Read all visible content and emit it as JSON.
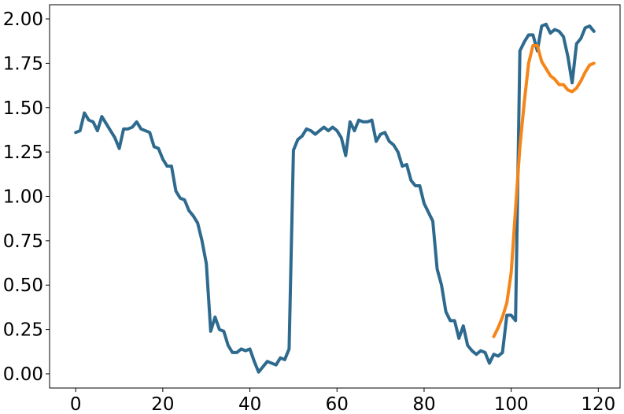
{
  "chart_data": {
    "type": "line",
    "title": "",
    "xlabel": "",
    "ylabel": "",
    "xlim": [
      -6,
      125
    ],
    "ylim": [
      -0.08,
      2.08
    ],
    "xticks": [
      0,
      20,
      40,
      60,
      80,
      100,
      120
    ],
    "xtick_labels": [
      "0",
      "20",
      "40",
      "60",
      "80",
      "100",
      "120"
    ],
    "yticks": [
      0.0,
      0.25,
      0.5,
      0.75,
      1.0,
      1.25,
      1.5,
      1.75,
      2.0
    ],
    "ytick_labels": [
      "0.00",
      "0.25",
      "0.50",
      "0.75",
      "1.00",
      "1.25",
      "1.50",
      "1.75",
      "2.00"
    ],
    "grid": false,
    "legend": "none",
    "series": [
      {
        "color": "#2e6a8e",
        "x": [
          0,
          1,
          2,
          3,
          4,
          5,
          6,
          7,
          8,
          9,
          10,
          11,
          12,
          13,
          14,
          15,
          16,
          17,
          18,
          19,
          20,
          21,
          22,
          23,
          24,
          25,
          26,
          27,
          28,
          29,
          30,
          31,
          32,
          33,
          34,
          35,
          36,
          37,
          38,
          39,
          40,
          41,
          42,
          43,
          44,
          45,
          46,
          47,
          48,
          49,
          50,
          51,
          52,
          53,
          54,
          55,
          56,
          57,
          58,
          59,
          60,
          61,
          62,
          63,
          64,
          65,
          66,
          67,
          68,
          69,
          70,
          71,
          72,
          73,
          74,
          75,
          76,
          77,
          78,
          79,
          80,
          81,
          82,
          83,
          84,
          85,
          86,
          87,
          88,
          89,
          90,
          91,
          92,
          93,
          94,
          95,
          96,
          97,
          98,
          99,
          100,
          101,
          102,
          103,
          104,
          105,
          106,
          107,
          108,
          109,
          110,
          111,
          112,
          113,
          114,
          115,
          116,
          117,
          118,
          119
        ],
        "y": [
          1.36,
          1.37,
          1.47,
          1.43,
          1.42,
          1.37,
          1.45,
          1.41,
          1.37,
          1.33,
          1.27,
          1.38,
          1.38,
          1.39,
          1.42,
          1.38,
          1.37,
          1.36,
          1.28,
          1.27,
          1.21,
          1.17,
          1.17,
          1.03,
          0.99,
          0.98,
          0.92,
          0.89,
          0.85,
          0.75,
          0.62,
          0.24,
          0.32,
          0.25,
          0.24,
          0.16,
          0.12,
          0.12,
          0.14,
          0.13,
          0.14,
          0.07,
          0.01,
          0.04,
          0.07,
          0.06,
          0.05,
          0.09,
          0.08,
          0.14,
          1.26,
          1.32,
          1.34,
          1.38,
          1.37,
          1.35,
          1.37,
          1.39,
          1.37,
          1.39,
          1.37,
          1.33,
          1.23,
          1.42,
          1.37,
          1.43,
          1.42,
          1.42,
          1.43,
          1.31,
          1.35,
          1.36,
          1.31,
          1.29,
          1.25,
          1.17,
          1.18,
          1.09,
          1.06,
          1.06,
          0.96,
          0.91,
          0.86,
          0.59,
          0.5,
          0.35,
          0.3,
          0.3,
          0.2,
          0.27,
          0.16,
          0.13,
          0.11,
          0.13,
          0.12,
          0.06,
          0.11,
          0.1,
          0.12,
          0.33,
          0.33,
          0.3,
          1.82,
          1.87,
          1.91,
          1.91,
          1.82,
          1.96,
          1.97,
          1.92,
          1.94,
          1.93,
          1.9,
          1.79,
          1.64,
          1.86,
          1.89,
          1.95,
          1.96,
          1.93
        ]
      },
      {
        "color": "#f58518",
        "x": [
          96,
          97,
          98,
          99,
          100,
          101,
          102,
          103,
          104,
          105,
          106,
          107,
          108,
          109,
          110,
          111,
          112,
          113,
          114,
          115,
          116,
          117,
          118,
          119
        ],
        "y": [
          0.21,
          0.26,
          0.32,
          0.4,
          0.57,
          0.93,
          1.28,
          1.53,
          1.75,
          1.85,
          1.85,
          1.76,
          1.72,
          1.68,
          1.66,
          1.63,
          1.63,
          1.6,
          1.59,
          1.61,
          1.65,
          1.7,
          1.74,
          1.75
        ]
      }
    ]
  }
}
